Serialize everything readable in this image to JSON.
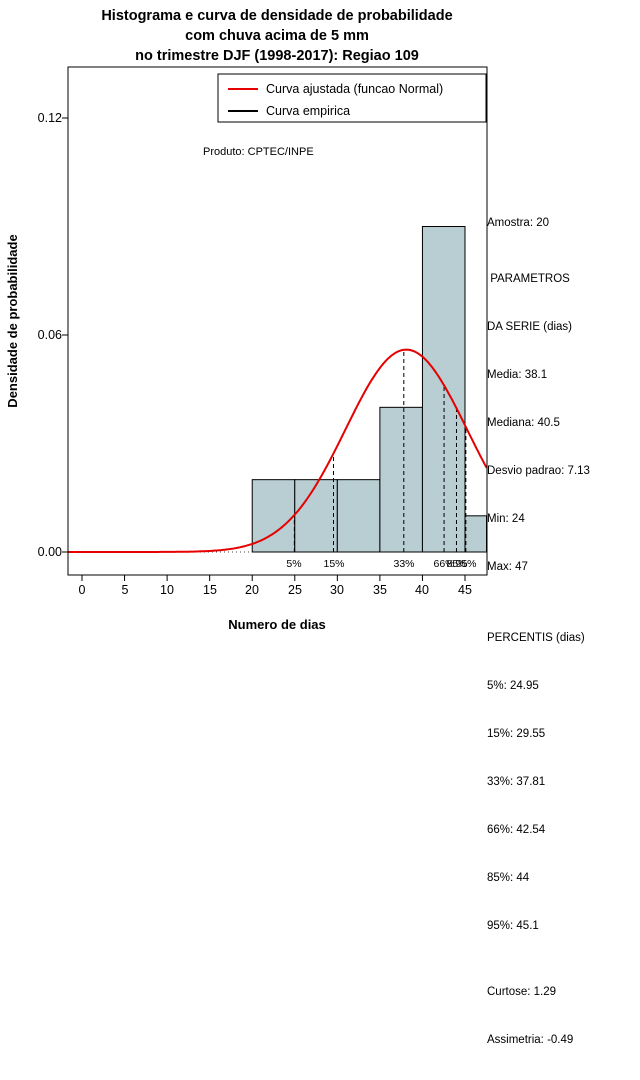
{
  "title": {
    "line1": "Histograma e curva de densidade de probabilidade",
    "line2": "com chuva acima de 5 mm",
    "line3": "no trimestre DJF (1998-2017): Regiao 109"
  },
  "annotation": "Produto: CPTEC/INPE",
  "legend": {
    "entries": [
      {
        "label": "Curva ajustada (funcao Normal)",
        "color": "#e60000"
      },
      {
        "label": "Curva empirica",
        "color": "#000000"
      }
    ]
  },
  "axes": {
    "x_label": "Numero de dias",
    "y_label": "Densidade de probabilidade",
    "x_ticks": [
      0,
      5,
      10,
      15,
      20,
      25,
      30,
      35,
      40,
      45
    ],
    "x_tick_labels": [
      "0",
      "5",
      "10",
      "15",
      "20",
      "25",
      "30",
      "35",
      "40",
      "45"
    ],
    "y_ticks": [
      0,
      0.06,
      0.12
    ],
    "y_tick_labels": [
      "0.00",
      "0.06",
      "0.12"
    ]
  },
  "chart_data": {
    "type": "bar",
    "subtype": "histogram-with-density-curve",
    "title": "Histograma e curva de densidade de probabilidade com chuva acima de 5 mm no trimestre DJF (1998-2017): Regiao 109",
    "xlabel": "Numero de dias",
    "ylabel": "Densidade de probabilidade",
    "xlim": [
      -1.65,
      47.6
    ],
    "ylim": [
      0,
      0.125
    ],
    "grid": false,
    "legend_position": "top-right-inside",
    "histogram": {
      "bin_breaks": [
        20,
        25,
        30,
        35,
        40,
        45,
        50
      ],
      "densities": [
        0.02,
        0.02,
        0.02,
        0.04,
        0.09,
        0.01
      ],
      "fill": "#b9ced3",
      "stroke": "#000000"
    },
    "normal_curve": {
      "mean": 38.1,
      "sd": 7.13,
      "color": "#e60000",
      "peak_density": 0.056
    },
    "zero_line": {
      "y": 0,
      "style": "dotted"
    },
    "percentile_lines": [
      {
        "label": "5%",
        "x": 24.95
      },
      {
        "label": "15%",
        "x": 29.55
      },
      {
        "label": "33%",
        "x": 37.81
      },
      {
        "label": "66%",
        "x": 42.54
      },
      {
        "label": "85%",
        "x": 44
      },
      {
        "label": "95%",
        "x": 45.1
      }
    ]
  },
  "stats_panel": {
    "sample": "Amostra: 20",
    "series_params": {
      "header1": " PARAMETROS",
      "header2": "DA SERIE (dias)",
      "media": "Media: 38.1",
      "mediana": "Mediana: 40.5",
      "desvio": "Desvio padrao: 7.13",
      "min": "Min: 24",
      "max": "Max: 47"
    },
    "percentis": {
      "header": "PERCENTIS (dias)",
      "p5": "5%: 24.95",
      "p15": "15%: 29.55",
      "p33": "33%: 37.81",
      "p66": "66%: 42.54",
      "p85": "85%: 44",
      "p95": "95%: 45.1"
    },
    "curtose": "Curtose: 1.29",
    "assimetria": "Assimetria: -0.49"
  }
}
